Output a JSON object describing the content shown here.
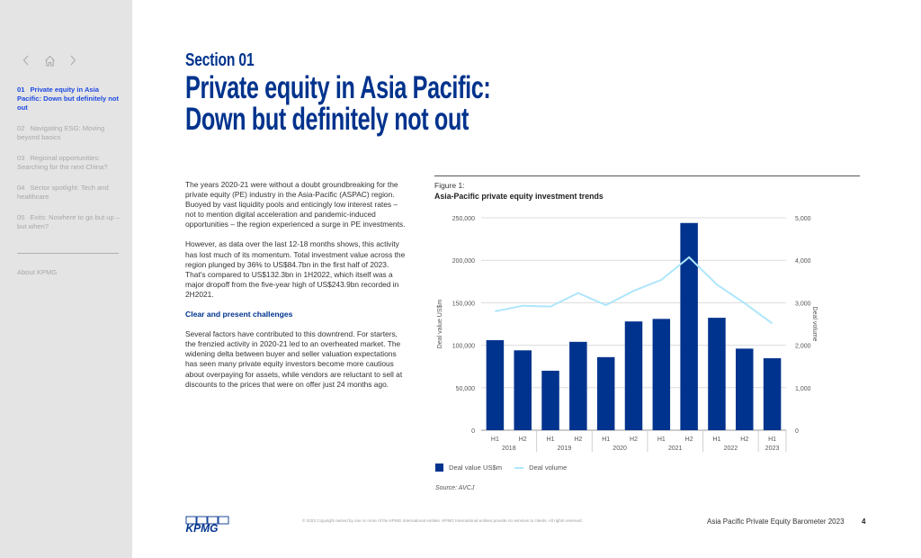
{
  "sidebar": {
    "nav": {
      "back_icon": "chevron-left-icon",
      "home_icon": "home-icon",
      "forward_icon": "chevron-right-icon"
    },
    "items": [
      {
        "num": "01",
        "label": "Private equity in Asia Pacific: Down but definitely not out",
        "active": true
      },
      {
        "num": "02",
        "label": "Navigating ESG: Moving beyond basics",
        "active": false
      },
      {
        "num": "03",
        "label": "Regional opportunities: Searching for the next China?",
        "active": false
      },
      {
        "num": "04",
        "label": "Sector spotlight: Tech and healthcare",
        "active": false
      },
      {
        "num": "05",
        "label": "Exits: Nowhere to go but up – but when?",
        "active": false
      }
    ],
    "about": "About KPMG"
  },
  "header": {
    "section": "Section 01",
    "title_line1": "Private equity in Asia Pacific:",
    "title_line2": "Down but definitely not out"
  },
  "body": {
    "p1": "The years 2020-21 were without a doubt groundbreaking for the private equity (PE) industry in the Asia-Pacific (ASPAC) region. Buoyed by vast liquidity pools and enticingly low interest rates – not to mention digital acceleration and pandemic-induced opportunities – the region experienced a surge in PE investments.",
    "p2": "However, as data over the last 12-18 months shows, this activity has lost much of its momentum. Total investment value across the region plunged by 36% to US$84.7bn in the first half of 2023. That's compared to US$132.3bn in 1H2022, which itself was a major dropoff from the five-year high of US$243.9bn recorded in 2H2021.",
    "subheading": "Clear and present challenges",
    "p3": "Several factors have contributed to this downtrend. For starters, the frenzied activity in 2020-21 led to an overheated market. The widening delta between buyer and seller valuation expectations has seen many private equity investors become more cautious about overpaying for assets, while vendors are reluctant to sell at discounts to the prices that were on offer just 24 months ago."
  },
  "figure": {
    "label": "Figure 1:",
    "title": "Asia-Pacific private equity investment trends",
    "source": "Source: AVCJ",
    "legend_bar": "Deal value US$m",
    "legend_line": "Deal volume"
  },
  "chart_data": {
    "type": "bar",
    "title": "Asia-Pacific private equity investment trends",
    "categories": [
      "H1 2018",
      "H2 2018",
      "H1 2019",
      "H2 2019",
      "H1 2020",
      "H2 2020",
      "H1 2021",
      "H2 2021",
      "H1 2022",
      "H2 2022",
      "H1 2023"
    ],
    "half_labels": [
      "H1",
      "H2",
      "H1",
      "H2",
      "H1",
      "H2",
      "H1",
      "H2",
      "H1",
      "H2",
      "H1"
    ],
    "year_groups": [
      {
        "year": "2018",
        "count": 2
      },
      {
        "year": "2019",
        "count": 2
      },
      {
        "year": "2020",
        "count": 2
      },
      {
        "year": "2021",
        "count": 2
      },
      {
        "year": "2022",
        "count": 2
      },
      {
        "year": "2023",
        "count": 1
      }
    ],
    "series": [
      {
        "name": "Deal value US$m",
        "type": "bar",
        "axis": "left",
        "color": "#00338d",
        "values": [
          106000,
          94000,
          70000,
          104000,
          86000,
          128000,
          131000,
          243900,
          132300,
          96000,
          84700
        ]
      },
      {
        "name": "Deal volume",
        "type": "line",
        "axis": "right",
        "color": "#aee6fb",
        "values": [
          2800,
          2930,
          2910,
          3230,
          2945,
          3280,
          3540,
          4070,
          3430,
          2990,
          2515
        ]
      }
    ],
    "ylabel": "Deal value US$m",
    "ylabel_right": "Deal volume",
    "ylim": [
      0,
      250000
    ],
    "ylim_right": [
      0,
      5000
    ],
    "yticks": [
      0,
      50000,
      100000,
      150000,
      200000,
      250000
    ],
    "ytick_labels": [
      "0",
      "50,000",
      "100,000",
      "150,000",
      "200,000",
      "250,000"
    ],
    "yticks_right": [
      0,
      1000,
      2000,
      3000,
      4000,
      5000
    ],
    "ytick_labels_right": [
      "0",
      "1,000",
      "2,000",
      "3,000",
      "4,000",
      "5,000"
    ],
    "grid": true,
    "legend_position": "bottom-left"
  },
  "footer": {
    "logo": "KPMG",
    "copyright": "© 2023 Copyright owned by one or more of the KPMG International entities. KPMG International entities provide no services to clients. All rights reserved.",
    "publication": "Asia Pacific Private Equity Barometer 2023",
    "page": "4"
  }
}
